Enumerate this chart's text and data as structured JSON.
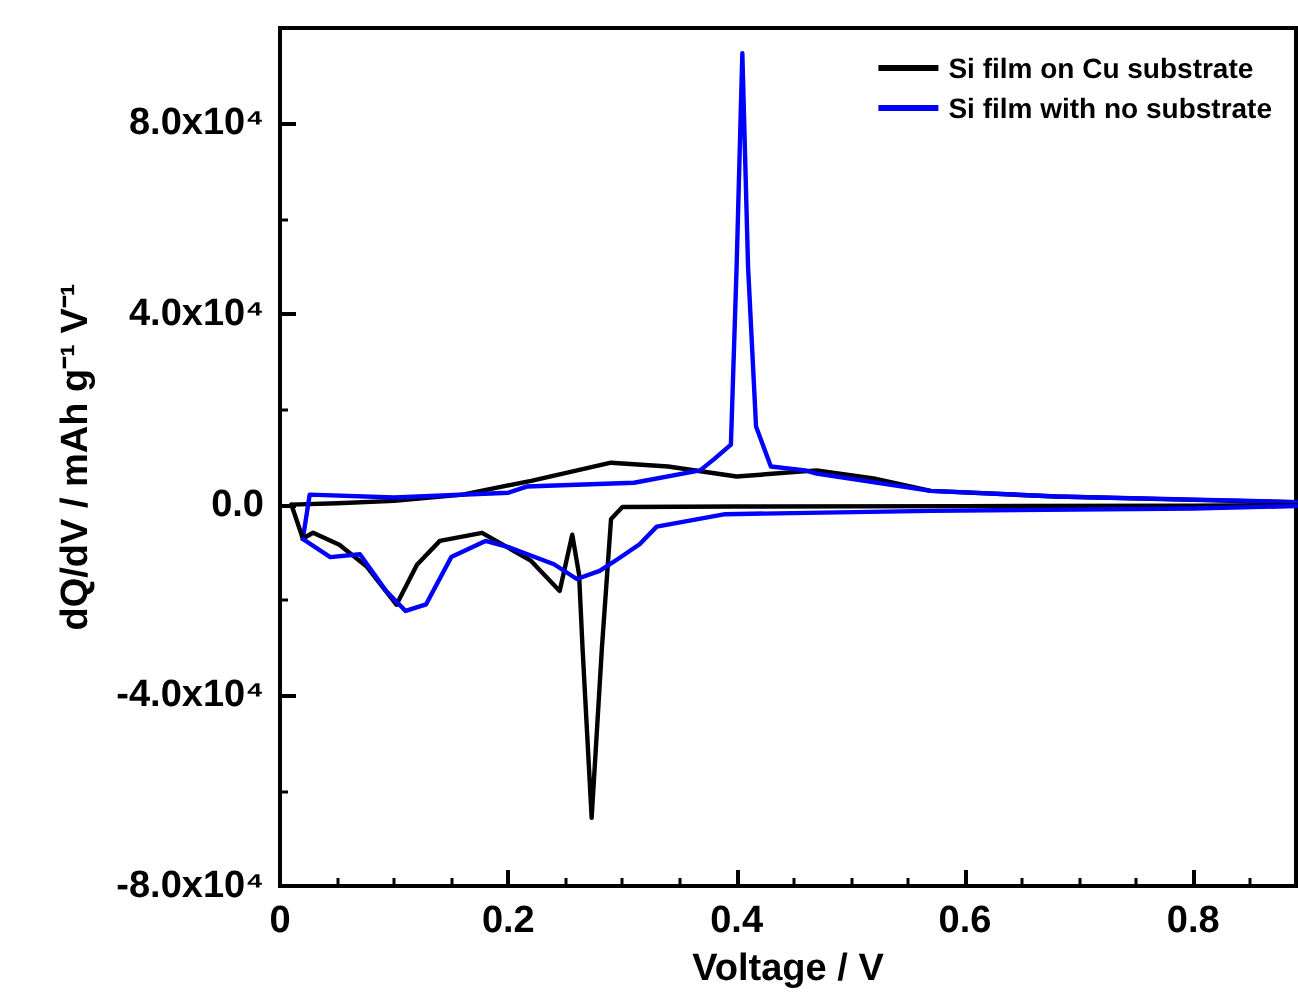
{
  "chart_data": {
    "type": "line",
    "xlabel": "Voltage / V",
    "ylabel": "dQ/dV / mAh g⁻¹ V⁻¹",
    "xlim": [
      0,
      0.89
    ],
    "ylim": [
      -80000,
      100000
    ],
    "xticks": [
      {
        "value": 0,
        "label": "0"
      },
      0.2,
      0.4,
      0.6,
      0.8
    ],
    "yticks": [
      {
        "value": -80000,
        "label": "-8.0x10⁴"
      },
      {
        "value": -40000,
        "label": "-4.0x10⁴"
      },
      {
        "value": 0,
        "label": "0.0"
      },
      {
        "value": 40000,
        "label": "4.0x10⁴"
      },
      {
        "value": 80000,
        "label": "8.0x10⁴"
      }
    ],
    "grid": false,
    "legend": "top right",
    "marker": "none",
    "line_style": "solid",
    "series": [
      {
        "name": "Si film on Cu substrate",
        "color": "#000000",
        "x": [
          0.01,
          0.05,
          0.1,
          0.16,
          0.22,
          0.29,
          0.34,
          0.4,
          0.47,
          0.52,
          0.57,
          0.68,
          0.8,
          0.89
        ],
        "values": [
          0,
          300,
          800,
          2100,
          5000,
          8800,
          8000,
          5900,
          7200,
          5500,
          2900,
          1700,
          1000,
          500
        ]
      },
      {
        "name": "Si film with no substrate",
        "color": "#0000ff",
        "x": [
          0.02,
          0.026,
          0.1,
          0.2,
          0.216,
          0.31,
          0.368,
          0.38,
          0.395,
          0.4,
          0.405,
          0.41,
          0.417,
          0.43,
          0.46,
          0.47,
          0.57,
          0.68,
          0.85,
          0.89
        ],
        "values": [
          -7200,
          2100,
          1500,
          2500,
          3800,
          4600,
          7200,
          9500,
          12600,
          50000,
          94700,
          50000,
          16400,
          8000,
          7200,
          6500,
          2900,
          1700,
          800,
          500
        ]
      },
      {
        "color": "#000000",
        "x": [
          0.01,
          0.02,
          0.029,
          0.052,
          0.076,
          0.102,
          0.12,
          0.14,
          0.177,
          0.22,
          0.245,
          0.256,
          0.262,
          0.265,
          0.273,
          0.282,
          0.29,
          0.3,
          0.4,
          0.6,
          0.8,
          0.89
        ],
        "values": [
          0,
          -7100,
          -5900,
          -8400,
          -13000,
          -21000,
          -12600,
          -7600,
          -5900,
          -11800,
          -18100,
          -6300,
          -14700,
          -30000,
          -65700,
          -30000,
          -3000,
          -500,
          -400,
          -300,
          -200,
          -100
        ]
      },
      {
        "color": "#0000ff",
        "x": [
          0.02,
          0.044,
          0.07,
          0.093,
          0.11,
          0.128,
          0.15,
          0.18,
          0.2,
          0.24,
          0.26,
          0.28,
          0.296,
          0.315,
          0.33,
          0.39,
          0.57,
          0.8,
          0.89
        ],
        "values": [
          -7200,
          -11000,
          -10400,
          -18100,
          -22300,
          -20900,
          -11000,
          -7600,
          -8900,
          -12500,
          -15600,
          -13900,
          -11400,
          -8300,
          -4600,
          -2000,
          -1300,
          -800,
          -300
        ]
      }
    ]
  }
}
